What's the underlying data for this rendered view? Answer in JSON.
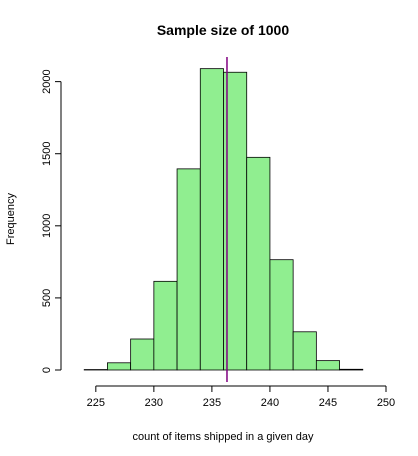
{
  "chart_data": {
    "type": "bar",
    "title": "Sample size of 1000",
    "xlabel": "count of items shipped in a given day",
    "ylabel": "Frequency",
    "bins": [
      {
        "start": 224,
        "end": 226,
        "value": 3
      },
      {
        "start": 226,
        "end": 228,
        "value": 50
      },
      {
        "start": 228,
        "end": 230,
        "value": 215
      },
      {
        "start": 230,
        "end": 232,
        "value": 615
      },
      {
        "start": 232,
        "end": 234,
        "value": 1395
      },
      {
        "start": 234,
        "end": 236,
        "value": 2090
      },
      {
        "start": 236,
        "end": 238,
        "value": 2065
      },
      {
        "start": 238,
        "end": 240,
        "value": 1475
      },
      {
        "start": 240,
        "end": 242,
        "value": 765
      },
      {
        "start": 242,
        "end": 244,
        "value": 265
      },
      {
        "start": 244,
        "end": 246,
        "value": 65
      },
      {
        "start": 246,
        "end": 248,
        "value": 5
      }
    ],
    "xlim": [
      222,
      250
    ],
    "ylim": [
      0,
      2150
    ],
    "xticks": [
      225,
      230,
      235,
      240,
      245,
      250
    ],
    "yticks": [
      0,
      500,
      1000,
      1500,
      2000
    ],
    "reference_line": {
      "x": 236.3,
      "color": "#800080"
    },
    "bar_color": "#90ee90",
    "grid": false
  }
}
